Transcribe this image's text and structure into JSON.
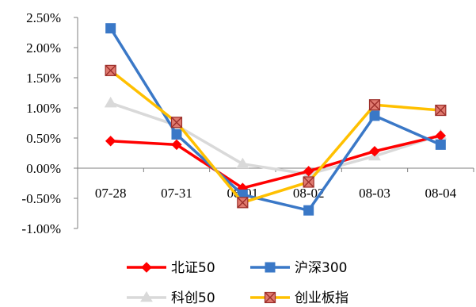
{
  "chart_data": {
    "type": "line",
    "categories": [
      "07-28",
      "07-31",
      "08-01",
      "08-02",
      "08-03",
      "08-04"
    ],
    "ylim": [
      -1.0,
      2.5
    ],
    "yticks": [
      2.5,
      2.0,
      1.5,
      1.0,
      0.5,
      0.0,
      -0.5,
      -1.0
    ],
    "ytick_labels": [
      "2.50%",
      "2.00%",
      "1.50%",
      "1.00%",
      "0.50%",
      "0.00%",
      "-0.50%",
      "-1.00%"
    ],
    "grid": false,
    "legend": "bottom",
    "series": [
      {
        "name": "北证50",
        "color": "#ff0000",
        "marker": "diamond",
        "values": [
          0.45,
          0.39,
          -0.33,
          -0.05,
          0.28,
          0.54
        ]
      },
      {
        "name": "沪深300",
        "color": "#3a78c7",
        "marker": "square",
        "values": [
          2.32,
          0.56,
          -0.44,
          -0.7,
          0.87,
          0.39
        ]
      },
      {
        "name": "科创50",
        "color": "#d9d9d9",
        "marker": "triangle",
        "values": [
          1.08,
          0.71,
          0.07,
          -0.1,
          0.2,
          0.55
        ]
      },
      {
        "name": "创业板指",
        "color": "#ffc000",
        "marker": "xsquare",
        "values": [
          1.62,
          0.76,
          -0.57,
          -0.23,
          1.05,
          0.96
        ]
      }
    ]
  }
}
